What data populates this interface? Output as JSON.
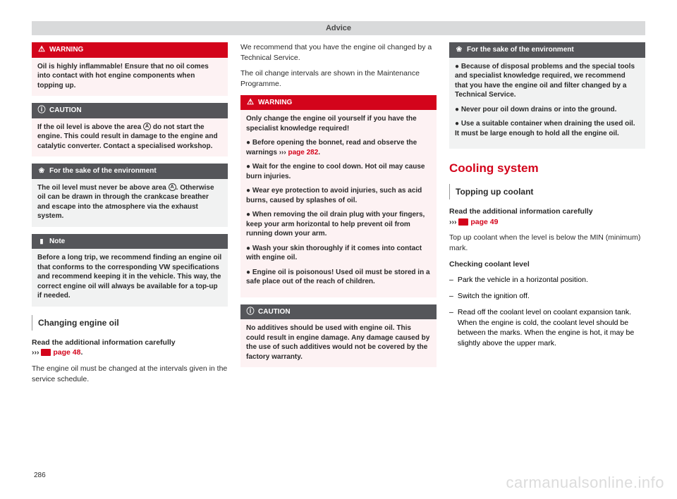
{
  "header": "Advice",
  "pageNumber": "286",
  "watermark": "carmanualsonline.info",
  "col1": {
    "warning": {
      "title": "WARNING",
      "body": "Oil is highly inflammable! Ensure that no oil comes into contact with hot engine components when topping up."
    },
    "caution": {
      "title": "CAUTION",
      "body_pre": "If the oil level is above the area ",
      "body_post": " do not start the engine. This could result in damage to the engine and catalytic converter. Contact a specialised workshop."
    },
    "env": {
      "title": "For the sake of the environment",
      "body_pre": "The oil level must never be above area ",
      "body_post": ". Otherwise oil can be drawn in through the crankcase breather and escape into the atmosphere via the exhaust system."
    },
    "note": {
      "title": "Note",
      "body": "Before a long trip, we recommend finding an engine oil that conforms to the corresponding VW specifications and recommend keeping it in the vehicle. This way, the correct engine oil will always be available for a top-up if needed."
    },
    "subheading": "Changing engine oil",
    "readInfo_pre": "Read the additional information carefully",
    "readInfo_link": "page 48",
    "body2": "The engine oil must be changed at the intervals given in the service schedule."
  },
  "col2": {
    "p1": "We recommend that you have the engine oil changed by a Technical Service.",
    "p2": "The oil change intervals are shown in the Maintenance Programme.",
    "warning": {
      "title": "WARNING",
      "intro": "Only change the engine oil yourself if you have the specialist knowledge required!",
      "b1_pre": "Before opening the bonnet, read and observe the warnings ",
      "b1_link": "page 282",
      "b2": "Wait for the engine to cool down. Hot oil may cause burn injuries.",
      "b3": "Wear eye protection to avoid injuries, such as acid burns, caused by splashes of oil.",
      "b4": "When removing the oil drain plug with your fingers, keep your arm horizontal to help prevent oil from running down your arm.",
      "b5": "Wash your skin thoroughly if it comes into contact with engine oil.",
      "b6": "Engine oil is poisonous! Used oil must be stored in a safe place out of the reach of children."
    },
    "caution": {
      "title": "CAUTION",
      "body": "No additives should be used with engine oil. This could result in engine damage. Any damage caused by the use of such additives would not be covered by the factory warranty."
    }
  },
  "col3": {
    "env": {
      "title": "For the sake of the environment",
      "b1": "Because of disposal problems and the special tools and specialist knowledge required, we recommend that you have the engine oil and filter changed by a Technical Service.",
      "b2": "Never pour oil down drains or into the ground.",
      "b3": "Use a suitable container when draining the used oil. It must be large enough to hold all the engine oil."
    },
    "sectionTitle": "Cooling system",
    "subheading": "Topping up coolant",
    "readInfo_pre": "Read the additional information carefully",
    "readInfo_link": "page 49",
    "p1": "Top up coolant when the level is below the MIN (minimum) mark.",
    "checkTitle": "Checking coolant level",
    "d1": "Park the vehicle in a horizontal position.",
    "d2": "Switch the ignition off.",
    "d3": "Read off the coolant level on coolant expansion tank. When the engine is cold, the coolant level should be between the marks. When the engine is hot, it may be slightly above the upper mark."
  }
}
